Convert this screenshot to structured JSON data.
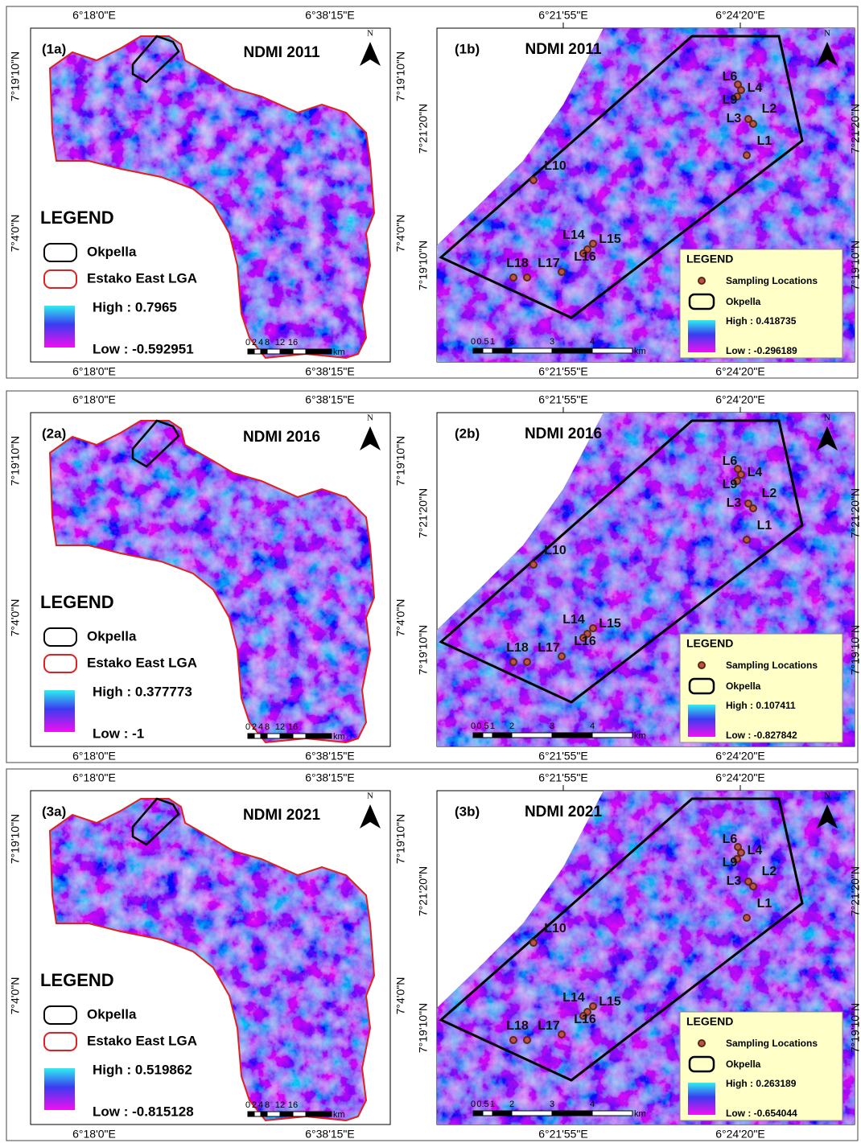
{
  "figure": {
    "rows": [
      {
        "a": {
          "label": "(1a)",
          "title": "NDMI 2011",
          "north": "N",
          "top_coords": [
            "6°18'0\"E",
            "6°38'15\"E"
          ],
          "bottom_coords": [
            "6°18'0\"E",
            "6°38'15\"E"
          ],
          "left_coords": [
            "7°19'10\"N",
            "7°4'0\"N"
          ],
          "right_coords": [
            "7°19'10\"N",
            "7°4'0\"N"
          ],
          "legend": {
            "title": "LEGEND",
            "items": [
              "Okpella",
              "Estako East LGA"
            ],
            "high": "High : 0.7965",
            "low": "Low : -0.592951"
          },
          "scale": [
            "0",
            "2",
            "4",
            "8",
            "12",
            "16",
            "km"
          ]
        },
        "b": {
          "label": "(1b)",
          "title": "NDMI 2011",
          "north": "N",
          "top_coords": [
            "6°21'55\"E",
            "6°24'20\"E"
          ],
          "bottom_coords": [
            "6°21'55\"E",
            "6°24'20\"E"
          ],
          "left_coords": [
            "7°21'20\"N",
            "7°19'10\"N"
          ],
          "right_coords": [
            "7°21'20\"N",
            "7°19'10\"N"
          ],
          "sites": [
            "L1",
            "L2",
            "L3",
            "L4",
            "L6",
            "L9",
            "L10",
            "L14",
            "L15",
            "L16",
            "L17",
            "L18"
          ],
          "legend": {
            "title": "LEGEND",
            "items": [
              "Sampling Locations",
              "Okpella"
            ],
            "high": "High : 0.418735",
            "low": "Low : -0.296189"
          },
          "scale": [
            "0",
            "0.5",
            "1",
            "2",
            "3",
            "4",
            "km"
          ]
        }
      },
      {
        "a": {
          "label": "(2a)",
          "title": "NDMI 2016",
          "north": "N",
          "top_coords": [
            "6°18'0\"E",
            "6°38'15\"E"
          ],
          "bottom_coords": [
            "6°18'0\"E",
            "6°38'15\"E"
          ],
          "left_coords": [
            "7°19'10\"N",
            "7°4'0\"N"
          ],
          "right_coords": [
            "7°19'10\"N",
            "7°4'0\"N"
          ],
          "legend": {
            "title": "LEGEND",
            "items": [
              "Okpella",
              "Estako East LGA"
            ],
            "high": "High : 0.377773",
            "low": "Low : -1"
          },
          "scale": [
            "0",
            "2",
            "4",
            "8",
            "12",
            "16",
            "km"
          ]
        },
        "b": {
          "label": "(2b)",
          "title": "NDMI 2016",
          "north": "N",
          "top_coords": [
            "6°21'55\"E",
            "6°24'20\"E"
          ],
          "bottom_coords": [
            "6°21'55\"E",
            "6°24'20\"E"
          ],
          "left_coords": [
            "7°21'20\"N",
            "7°19'10\"N"
          ],
          "right_coords": [
            "7°21'20\"N",
            "7°19'10\"N"
          ],
          "sites": [
            "L1",
            "L2",
            "L3",
            "L4",
            "L6",
            "L9",
            "L10",
            "L14",
            "L15",
            "L16",
            "L17",
            "L18"
          ],
          "legend": {
            "title": "LEGEND",
            "items": [
              "Sampling Locations",
              "Okpella"
            ],
            "high": "High : 0.107411",
            "low": "Low : -0.827842"
          },
          "scale": [
            "0",
            "0.5",
            "1",
            "2",
            "3",
            "4",
            "km"
          ]
        }
      },
      {
        "a": {
          "label": "(3a)",
          "title": "NDMI 2021",
          "north": "N",
          "top_coords": [
            "6°18'0\"E",
            "6°38'15\"E"
          ],
          "bottom_coords": [
            "6°18'0\"E",
            "6°38'15\"E"
          ],
          "left_coords": [
            "7°19'10\"N",
            "7°4'0\"N"
          ],
          "right_coords": [
            "7°19'10\"N",
            "7°4'0\"N"
          ],
          "legend": {
            "title": "LEGEND",
            "items": [
              "Okpella",
              "Estako East LGA"
            ],
            "high": "High : 0.519862",
            "low": "Low : -0.815128"
          },
          "scale": [
            "0",
            "2",
            "4",
            "8",
            "12",
            "16",
            "km"
          ]
        },
        "b": {
          "label": "(3b)",
          "title": "NDMI 2021",
          "north": "N",
          "top_coords": [
            "6°21'55\"E",
            "6°24'20\"E"
          ],
          "bottom_coords": [
            "6°21'55\"E",
            "6°24'20\"E"
          ],
          "left_coords": [
            "7°21'20\"N",
            "7°19'10\"N"
          ],
          "right_coords": [
            "7°21'20\"N",
            "7°19'10\"N"
          ],
          "sites": [
            "L1",
            "L2",
            "L3",
            "L4",
            "L6",
            "L9",
            "L10",
            "L14",
            "L15",
            "L16",
            "L17",
            "L18"
          ],
          "legend": {
            "title": "LEGEND",
            "items": [
              "Sampling Locations",
              "Okpella"
            ],
            "high": "High : 0.263189",
            "low": "Low : -0.654044"
          },
          "scale": [
            "0",
            "0.5",
            "1",
            "2",
            "3",
            "4",
            "km"
          ]
        }
      }
    ]
  }
}
